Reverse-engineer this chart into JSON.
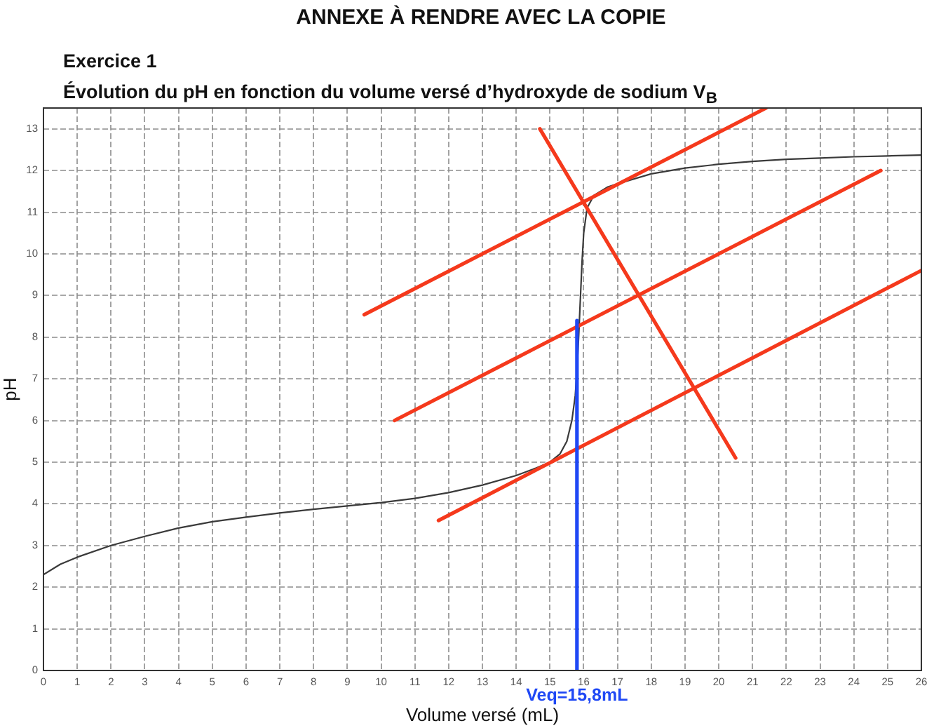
{
  "chart_data": {
    "type": "line",
    "title": "ANNEXE À RENDRE AVEC LA COPIE",
    "subtitle": "Exercice 1\nÉvolution du pH en fonction du volume versé d’hydroxyde de sodium V$_{B}$",
    "xlabel": "Volume versé (mL)",
    "ylabel": "pH",
    "x": [
      0,
      0.5,
      1,
      2,
      3,
      4,
      5,
      6,
      7,
      8,
      9,
      10,
      11,
      12,
      13,
      14,
      14.5,
      15,
      15.3,
      15.5,
      15.65,
      15.75,
      15.8,
      15.85,
      15.9,
      15.95,
      16,
      16.1,
      16.3,
      16.7,
      17,
      18,
      19,
      20,
      21,
      22,
      23,
      24,
      25,
      26
    ],
    "series": [
      {
        "color": "#3a3a3a",
        "values": [
          2.3,
          2.55,
          2.72,
          3.0,
          3.22,
          3.42,
          3.57,
          3.68,
          3.78,
          3.87,
          3.95,
          4.03,
          4.13,
          4.27,
          4.45,
          4.68,
          4.83,
          5.0,
          5.2,
          5.5,
          6.0,
          6.6,
          7.2,
          8.0,
          8.9,
          9.8,
          10.5,
          11.1,
          11.4,
          11.6,
          11.68,
          11.92,
          12.06,
          12.15,
          12.22,
          12.27,
          12.3,
          12.33,
          12.35,
          12.37
        ]
      },
      {
        "color": "#f5391c",
        "x": [
          9.5,
          21.4
        ],
        "values": [
          8.54,
          13.5
        ]
      },
      {
        "color": "#f5391c",
        "x": [
          10.4,
          24.8
        ],
        "values": [
          6.0,
          12.0
        ]
      },
      {
        "color": "#f5391c",
        "x": [
          11.7,
          26
        ],
        "values": [
          3.6,
          9.6
        ]
      },
      {
        "color": "#f5391c",
        "x": [
          14.7,
          20.5
        ],
        "values": [
          13.0,
          5.1
        ]
      },
      {
        "color": "#1f48f5",
        "x": [
          15.8,
          15.8
        ],
        "values": [
          0,
          8.4
        ]
      }
    ],
    "annotations": [
      {
        "text": "Veq=15,8mL",
        "x": 15.8,
        "y": 0
      }
    ],
    "xlim": [
      0,
      26
    ],
    "ylim": [
      0,
      13.5
    ],
    "xticks": [
      0,
      1,
      2,
      3,
      4,
      5,
      6,
      7,
      8,
      9,
      10,
      11,
      12,
      13,
      14,
      15,
      16,
      17,
      18,
      19,
      20,
      21,
      22,
      23,
      24,
      25,
      26
    ],
    "yticks": [
      0,
      1,
      2,
      3,
      4,
      5,
      6,
      7,
      8,
      9,
      10,
      11,
      12,
      13
    ],
    "grid": true,
    "marker": "none",
    "line_style": "solid"
  }
}
